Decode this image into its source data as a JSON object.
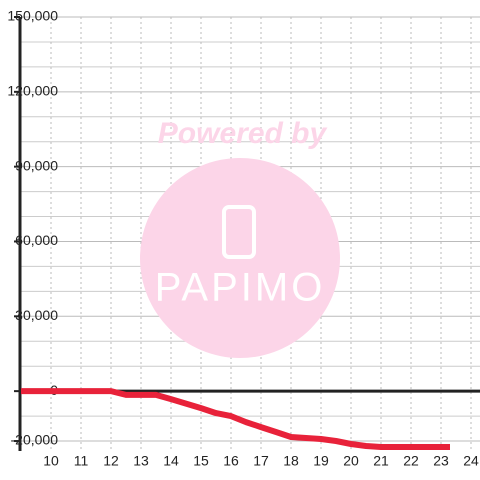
{
  "chart_data": {
    "type": "line",
    "watermark": {
      "top": "Powered by",
      "brand": "PAPIMO"
    },
    "x": [
      9,
      12,
      12.5,
      13.5,
      14,
      14.5,
      15,
      15.5,
      16,
      16.5,
      17,
      17.5,
      18,
      18.5,
      19,
      19.5,
      20,
      20.5,
      21,
      22,
      23.3
    ],
    "series": [
      {
        "color": "#e8223a",
        "values": [
          0,
          0,
          -1500,
          -1500,
          -3200,
          -5000,
          -6800,
          -8800,
          -10000,
          -12400,
          -14400,
          -16400,
          -18400,
          -18800,
          -19200,
          -20000,
          -21200,
          -22000,
          -22400,
          -22400,
          -22400
        ]
      }
    ],
    "xlim": [
      9,
      24.3
    ],
    "xticks": [
      10,
      11,
      12,
      13,
      14,
      15,
      16,
      17,
      18,
      19,
      20,
      21,
      22,
      23,
      24
    ],
    "ylim": [
      -24000,
      150000
    ],
    "yticks": [
      {
        "value": -20000,
        "label": "-20,000"
      },
      0,
      {
        "value": 30000,
        "label": "30,000"
      },
      {
        "value": 60000,
        "label": "60,000"
      },
      {
        "value": 90000,
        "label": "90,000"
      },
      {
        "value": 120000,
        "label": "120,000"
      },
      {
        "value": 150000,
        "label": "150,000"
      }
    ],
    "yminor": [
      -10000,
      10000,
      20000,
      40000,
      50000,
      70000,
      80000,
      100000,
      110000,
      130000,
      140000
    ],
    "grid": true
  }
}
